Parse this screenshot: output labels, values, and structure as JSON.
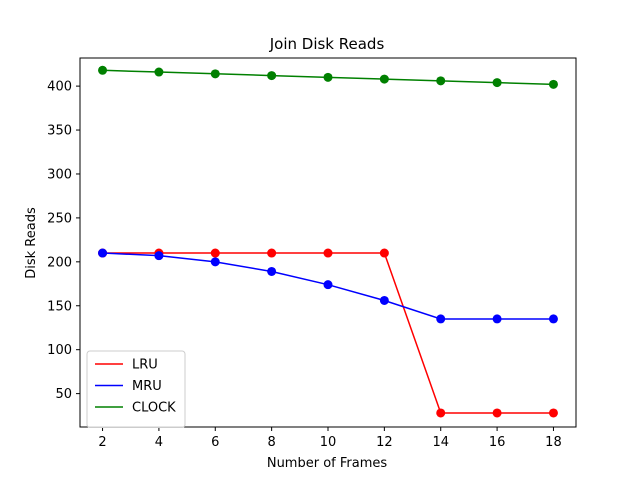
{
  "chart_data": {
    "type": "line",
    "title": "Join Disk Reads",
    "xlabel": "Number of Frames",
    "ylabel": "Disk Reads",
    "x": [
      2,
      4,
      6,
      8,
      10,
      12,
      14,
      16,
      18
    ],
    "xlim": [
      1.2,
      18.8
    ],
    "ylim": [
      12,
      432
    ],
    "xticks": [
      2,
      4,
      6,
      8,
      10,
      12,
      14,
      16,
      18
    ],
    "yticks": [
      50,
      100,
      150,
      200,
      250,
      300,
      350,
      400
    ],
    "grid": false,
    "legend_position": "lower-left",
    "markers": true,
    "series": [
      {
        "name": "LRU",
        "color": "#ff0000",
        "values": [
          210,
          210,
          210,
          210,
          210,
          210,
          28,
          28,
          28
        ]
      },
      {
        "name": "MRU",
        "color": "#0000ff",
        "values": [
          210,
          207,
          200,
          189,
          174,
          156,
          135,
          135,
          135
        ]
      },
      {
        "name": "CLOCK",
        "color": "#008000",
        "values": [
          418,
          416,
          414,
          412,
          410,
          408,
          406,
          404,
          402
        ]
      }
    ]
  }
}
